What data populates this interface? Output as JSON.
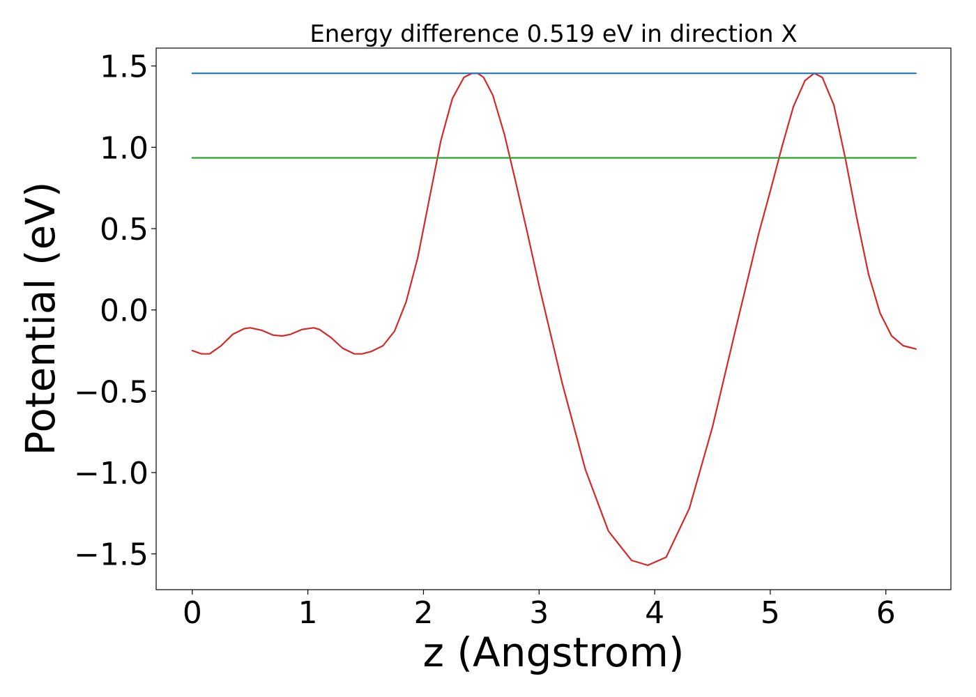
{
  "chart_data": {
    "type": "line",
    "title": "Energy difference 0.519 eV in direction X",
    "xlabel": "z (Angstrom)",
    "ylabel": "Potential (eV)",
    "xlim": [
      -0.3125,
      6.5625
    ],
    "ylim": [
      -1.72,
      1.61
    ],
    "xticks": [
      0,
      1,
      2,
      3,
      4,
      5,
      6
    ],
    "xtick_labels": [
      "0",
      "1",
      "2",
      "3",
      "4",
      "5",
      "6"
    ],
    "yticks": [
      -1.5,
      -1.0,
      -0.5,
      0.0,
      0.5,
      1.0,
      1.5
    ],
    "ytick_labels": [
      "−1.5",
      "−1.0",
      "−0.5",
      "0.0",
      "0.5",
      "1.0",
      "1.5"
    ],
    "grid": false,
    "legend": "none",
    "series": [
      {
        "color": "#d62728",
        "x": [
          0,
          0.08,
          0.15,
          0.25,
          0.35,
          0.45,
          0.5,
          0.6,
          0.7,
          0.78,
          0.85,
          0.95,
          1.05,
          1.1,
          1.2,
          1.3,
          1.4,
          1.47,
          1.55,
          1.65,
          1.75,
          1.85,
          1.95,
          2.05,
          2.15,
          2.25,
          2.35,
          2.42,
          2.47,
          2.52,
          2.6,
          2.7,
          2.8,
          2.9,
          3.0,
          3.2,
          3.4,
          3.6,
          3.8,
          3.94,
          4.1,
          4.3,
          4.5,
          4.7,
          4.9,
          5.0,
          5.1,
          5.2,
          5.3,
          5.38,
          5.45,
          5.55,
          5.65,
          5.75,
          5.85,
          5.95,
          6.05,
          6.15,
          6.26
        ],
        "y": [
          -0.25,
          -0.27,
          -0.27,
          -0.22,
          -0.15,
          -0.115,
          -0.11,
          -0.125,
          -0.155,
          -0.16,
          -0.15,
          -0.12,
          -0.11,
          -0.12,
          -0.17,
          -0.235,
          -0.27,
          -0.27,
          -0.255,
          -0.22,
          -0.13,
          0.05,
          0.32,
          0.68,
          1.04,
          1.3,
          1.43,
          1.455,
          1.455,
          1.43,
          1.32,
          1.08,
          0.78,
          0.47,
          0.15,
          -0.45,
          -0.98,
          -1.36,
          -1.54,
          -1.57,
          -1.52,
          -1.22,
          -0.72,
          -0.12,
          0.47,
          0.73,
          1.0,
          1.25,
          1.41,
          1.455,
          1.43,
          1.26,
          0.93,
          0.56,
          0.22,
          -0.02,
          -0.16,
          -0.22,
          -0.24
        ]
      },
      {
        "color": "#1f77b4",
        "x": [
          0,
          6.26
        ],
        "y": [
          1.455,
          1.455
        ]
      },
      {
        "color": "#2ca02c",
        "x": [
          0,
          6.26
        ],
        "y": [
          0.935,
          0.935
        ]
      }
    ]
  }
}
